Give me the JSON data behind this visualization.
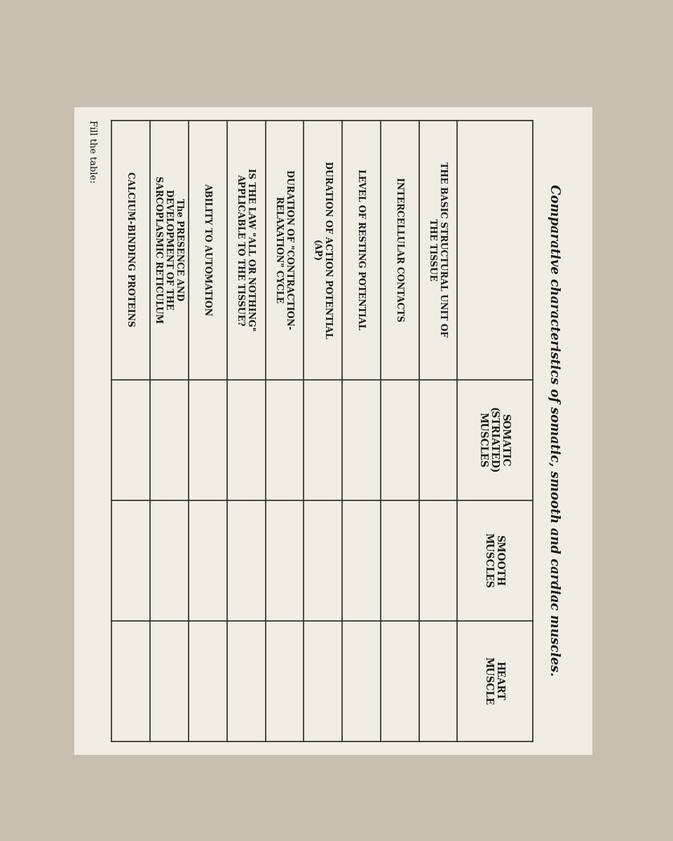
{
  "title": "Comparative characteristics of somatic, smooth and cardiac muscles.",
  "subtitle": "Fill the table:",
  "background_color": "#c8bfb0",
  "paper_color": "#f2ede4",
  "row_labels": [
    "THE BASIC STRUCTURAL UNIT OF\nTHE TISSUE",
    "INTERCELLULAR CONTACTS",
    "LEVEL OF RESTING POTENTIAL",
    "DURATION OF ACTION POTENTIAL\n(AP)",
    "DURATION OF \"CONTRACTION-\nRELAXATION\" CYCLE",
    "IS THE LAW \"ALL OR NOTHING\"\nAPPLICABLE TO THE TISSUE?",
    "ABILITY TO AUTOMATION",
    "The PRESENCE AND\nDEVELOPMENT OF THE\nSARCOPLASMIC RETICULUM",
    "CALCIUM-BINDING PROTEINS"
  ],
  "col_labels": [
    "SOMATIC\n(STRIATED)\nMUSCLES",
    "SMOOTH\nMUSCLES",
    "HEART\nMUSCLE"
  ],
  "text_color": "#1a1a1a",
  "line_color": "#2a2a2a"
}
